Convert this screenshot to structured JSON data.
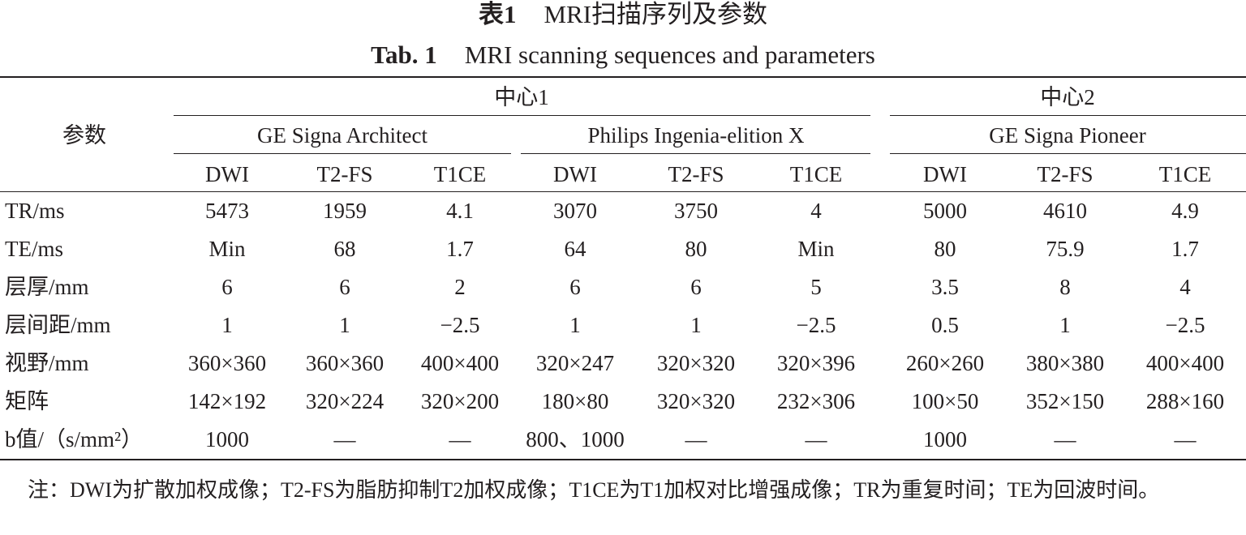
{
  "title": {
    "zh": {
      "label": "表1",
      "text": "MRI扫描序列及参数"
    },
    "en": {
      "label": "Tab. 1",
      "text": "MRI scanning sequences and parameters"
    }
  },
  "table": {
    "header": {
      "param": "参数",
      "centers": [
        {
          "label": "中心1",
          "devices": [
            {
              "name": "GE Signa Architect",
              "sequences": [
                "DWI",
                "T2-FS",
                "T1CE"
              ]
            },
            {
              "name": "Philips Ingenia-elition X",
              "sequences": [
                "DWI",
                "T2-FS",
                "T1CE"
              ]
            }
          ]
        },
        {
          "label": "中心2",
          "devices": [
            {
              "name": "GE Signa Pioneer",
              "sequences": [
                "DWI",
                "T2-FS",
                "T1CE"
              ]
            }
          ]
        }
      ]
    },
    "rows": [
      {
        "label": "TR/ms",
        "cells": [
          "5473",
          "1959",
          "4.1",
          "3070",
          "3750",
          "4",
          "5000",
          "4610",
          "4.9"
        ]
      },
      {
        "label": "TE/ms",
        "cells": [
          "Min",
          "68",
          "1.7",
          "64",
          "80",
          "Min",
          "80",
          "75.9",
          "1.7"
        ]
      },
      {
        "label": "层厚/mm",
        "cells": [
          "6",
          "6",
          "2",
          "6",
          "6",
          "5",
          "3.5",
          "8",
          "4"
        ]
      },
      {
        "label": "层间距/mm",
        "cells": [
          "1",
          "1",
          "−2.5",
          "1",
          "1",
          "−2.5",
          "0.5",
          "1",
          "−2.5"
        ]
      },
      {
        "label": "视野/mm",
        "cells": [
          "360×360",
          "360×360",
          "400×400",
          "320×247",
          "320×320",
          "320×396",
          "260×260",
          "380×380",
          "400×400"
        ]
      },
      {
        "label": "矩阵",
        "cells": [
          "142×192",
          "320×224",
          "320×200",
          "180×80",
          "320×320",
          "232×306",
          "100×50",
          "352×150",
          "288×160"
        ]
      },
      {
        "label": "b值/（s/mm²）",
        "cells": [
          "1000",
          "—",
          "—",
          "800、1000",
          "—",
          "—",
          "1000",
          "—",
          "—"
        ]
      }
    ]
  },
  "note": "注：DWI为扩散加权成像；T2-FS为脂肪抑制T2加权成像；T1CE为T1加权对比增强成像；TR为重复时间；TE为回波时间。"
}
